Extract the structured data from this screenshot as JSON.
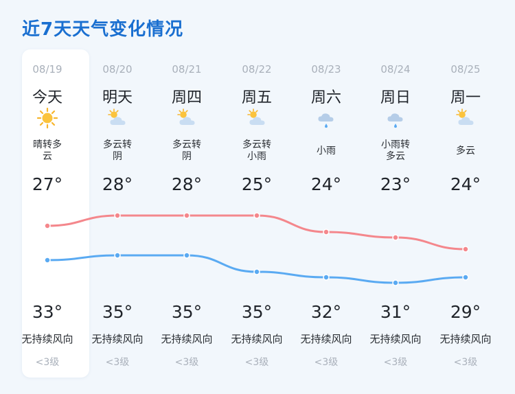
{
  "title": "近7天天气变化情况",
  "days": [
    {
      "date": "08/19",
      "day": "今天",
      "desc": "晴转多云",
      "high": "27°",
      "low": "33°",
      "wind": "无持续风向",
      "level": "<3级",
      "icon": "sun-icon"
    },
    {
      "date": "08/20",
      "day": "明天",
      "desc": "多云转阴",
      "high": "28°",
      "low": "35°",
      "wind": "无持续风向",
      "level": "<3级",
      "icon": "partly-cloudy-icon"
    },
    {
      "date": "08/21",
      "day": "周四",
      "desc": "多云转阴",
      "high": "28°",
      "low": "35°",
      "wind": "无持续风向",
      "level": "<3级",
      "icon": "partly-cloudy-icon"
    },
    {
      "date": "08/22",
      "day": "周五",
      "desc": "多云转小雨",
      "high": "25°",
      "low": "35°",
      "wind": "无持续风向",
      "level": "<3级",
      "icon": "partly-cloudy-icon"
    },
    {
      "date": "08/23",
      "day": "周六",
      "desc": "小雨",
      "high": "24°",
      "low": "32°",
      "wind": "无持续风向",
      "level": "<3级",
      "icon": "rain-icon"
    },
    {
      "date": "08/24",
      "day": "周日",
      "desc": "小雨转多云",
      "high": "23°",
      "low": "31°",
      "wind": "无持续风向",
      "level": "<3级",
      "icon": "rain-icon"
    },
    {
      "date": "08/25",
      "day": "周一",
      "desc": "多云",
      "high": "24°",
      "low": "29°",
      "wind": "无持续风向",
      "level": "<3级",
      "icon": "partly-cloudy-icon"
    }
  ],
  "colors": {
    "title": "#1a6fd0",
    "high_line": "#f4878c",
    "low_line": "#5aaaf2"
  }
}
